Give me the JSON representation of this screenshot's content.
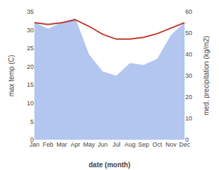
{
  "chart_data": {
    "type": "line",
    "categories": [
      "Jan",
      "Feb",
      "Mar",
      "Apr",
      "May",
      "Jun",
      "Jul",
      "Aug",
      "Sep",
      "Oct",
      "Nov",
      "Dec"
    ],
    "series": [
      {
        "name": "med. precipitation (kg/m2)",
        "type": "area",
        "axis": "y2",
        "color": "#b3c6f0",
        "values": [
          55.0,
          52.0,
          55.0,
          57.0,
          40.0,
          32.0,
          30.0,
          36.0,
          35.0,
          38.0,
          49.0,
          55.0
        ]
      },
      {
        "name": "max temp (C)",
        "type": "line",
        "color": "#c0392b",
        "values": [
          32.0,
          31.5,
          32.0,
          32.8,
          31.0,
          28.8,
          27.5,
          27.5,
          28.0,
          29.0,
          30.5,
          32.0
        ]
      }
    ],
    "xlabel": "date (month)",
    "ylabel": "max temp (C)",
    "y2label": "med. precipitation (kg/m2)",
    "ylim": [
      0,
      35
    ],
    "yticks": [
      0,
      5,
      10,
      15,
      20,
      25,
      30,
      35
    ],
    "y2lim": [
      0,
      60
    ],
    "y2ticks": [
      0,
      10,
      20,
      30,
      40,
      50,
      60
    ],
    "grid": false
  }
}
